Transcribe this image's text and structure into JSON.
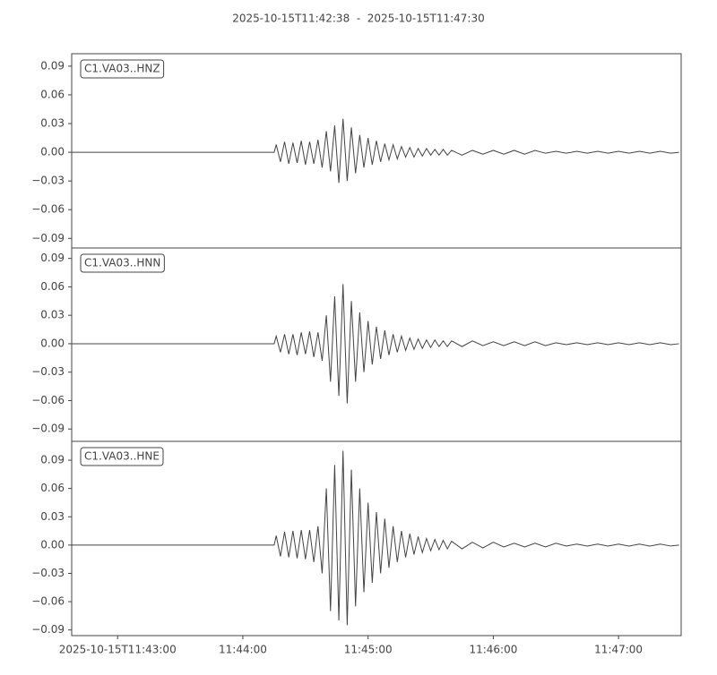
{
  "title": "2025-10-15T11:42:38  -  2025-10-15T11:47:30",
  "chart_data": [
    {
      "type": "line",
      "x": [
        "2025-10-15T11:42:38",
        "2025-10-15T11:44:15",
        "2025-10-15T11:44:16",
        "2025-10-15T11:44:18",
        "2025-10-15T11:44:20",
        "2025-10-15T11:44:22",
        "2025-10-15T11:44:24",
        "2025-10-15T11:44:26",
        "2025-10-15T11:44:28",
        "2025-10-15T11:44:30",
        "2025-10-15T11:44:32",
        "2025-10-15T11:44:34",
        "2025-10-15T11:44:36",
        "2025-10-15T11:44:38",
        "2025-10-15T11:44:40",
        "2025-10-15T11:44:42",
        "2025-10-15T11:44:44",
        "2025-10-15T11:44:46",
        "2025-10-15T11:44:48",
        "2025-10-15T11:44:50",
        "2025-10-15T11:44:52",
        "2025-10-15T11:44:54",
        "2025-10-15T11:44:56",
        "2025-10-15T11:44:58",
        "2025-10-15T11:45:00",
        "2025-10-15T11:45:02",
        "2025-10-15T11:45:04",
        "2025-10-15T11:45:06",
        "2025-10-15T11:45:08",
        "2025-10-15T11:45:10",
        "2025-10-15T11:45:12",
        "2025-10-15T11:45:14",
        "2025-10-15T11:45:16",
        "2025-10-15T11:45:18",
        "2025-10-15T11:45:20",
        "2025-10-15T11:45:22",
        "2025-10-15T11:45:24",
        "2025-10-15T11:45:26",
        "2025-10-15T11:45:28",
        "2025-10-15T11:45:30",
        "2025-10-15T11:45:32",
        "2025-10-15T11:45:34",
        "2025-10-15T11:45:36",
        "2025-10-15T11:45:38",
        "2025-10-15T11:45:40",
        "2025-10-15T11:45:45",
        "2025-10-15T11:45:50",
        "2025-10-15T11:45:55",
        "2025-10-15T11:46:00",
        "2025-10-15T11:46:05",
        "2025-10-15T11:46:10",
        "2025-10-15T11:46:15",
        "2025-10-15T11:46:20",
        "2025-10-15T11:46:25",
        "2025-10-15T11:46:30",
        "2025-10-15T11:46:35",
        "2025-10-15T11:46:40",
        "2025-10-15T11:46:45",
        "2025-10-15T11:46:50",
        "2025-10-15T11:46:55",
        "2025-10-15T11:47:00",
        "2025-10-15T11:47:05",
        "2025-10-15T11:47:10",
        "2025-10-15T11:47:15",
        "2025-10-15T11:47:20",
        "2025-10-15T11:47:25",
        "2025-10-15T11:47:29"
      ],
      "series": [
        {
          "name": "C1.VA03..HNZ",
          "color": "#444444",
          "values": [
            0,
            0,
            0.008,
            -0.01,
            0.011,
            -0.012,
            0.01,
            -0.011,
            0.012,
            -0.013,
            0.011,
            -0.012,
            0.013,
            -0.016,
            0.022,
            -0.02,
            0.028,
            -0.032,
            0.035,
            -0.03,
            0.026,
            -0.022,
            0.018,
            -0.016,
            0.015,
            -0.013,
            0.012,
            -0.01,
            0.009,
            -0.008,
            0.008,
            -0.007,
            0.006,
            -0.005,
            0.005,
            -0.005,
            0.004,
            -0.004,
            0.004,
            -0.003,
            0.003,
            -0.003,
            0.003,
            -0.003,
            0.002,
            -0.003,
            0.002,
            -0.002,
            0.002,
            -0.002,
            0.002,
            -0.002,
            0.002,
            -0.001,
            0.001,
            -0.001,
            0.001,
            -0.001,
            0.001,
            -0.001,
            0.001,
            -0.001,
            0.001,
            -0.001,
            0.001,
            -0.001,
            0
          ]
        }
      ],
      "xlim": [
        "2025-10-15T11:42:38",
        "2025-10-15T11:47:30"
      ],
      "ylim": [
        -0.1,
        0.103
      ],
      "yticks": [
        {
          "value": -0.09,
          "label": "−0.09"
        },
        {
          "value": -0.06,
          "label": "−0.06"
        },
        {
          "value": -0.03,
          "label": "−0.03"
        },
        {
          "value": 0,
          "label": "0.00"
        },
        {
          "value": 0.03,
          "label": "0.03"
        },
        {
          "value": 0.06,
          "label": "0.06"
        },
        {
          "value": 0.09,
          "label": "0.09"
        }
      ]
    },
    {
      "type": "line",
      "x": [
        "2025-10-15T11:42:38",
        "2025-10-15T11:44:15",
        "2025-10-15T11:44:16",
        "2025-10-15T11:44:18",
        "2025-10-15T11:44:20",
        "2025-10-15T11:44:22",
        "2025-10-15T11:44:24",
        "2025-10-15T11:44:26",
        "2025-10-15T11:44:28",
        "2025-10-15T11:44:30",
        "2025-10-15T11:44:32",
        "2025-10-15T11:44:34",
        "2025-10-15T11:44:36",
        "2025-10-15T11:44:38",
        "2025-10-15T11:44:40",
        "2025-10-15T11:44:42",
        "2025-10-15T11:44:44",
        "2025-10-15T11:44:46",
        "2025-10-15T11:44:48",
        "2025-10-15T11:44:50",
        "2025-10-15T11:44:52",
        "2025-10-15T11:44:54",
        "2025-10-15T11:44:56",
        "2025-10-15T11:44:58",
        "2025-10-15T11:45:00",
        "2025-10-15T11:45:02",
        "2025-10-15T11:45:04",
        "2025-10-15T11:45:06",
        "2025-10-15T11:45:08",
        "2025-10-15T11:45:10",
        "2025-10-15T11:45:12",
        "2025-10-15T11:45:14",
        "2025-10-15T11:45:16",
        "2025-10-15T11:45:18",
        "2025-10-15T11:45:20",
        "2025-10-15T11:45:22",
        "2025-10-15T11:45:24",
        "2025-10-15T11:45:26",
        "2025-10-15T11:45:28",
        "2025-10-15T11:45:30",
        "2025-10-15T11:45:32",
        "2025-10-15T11:45:34",
        "2025-10-15T11:45:36",
        "2025-10-15T11:45:38",
        "2025-10-15T11:45:40",
        "2025-10-15T11:45:45",
        "2025-10-15T11:45:50",
        "2025-10-15T11:45:55",
        "2025-10-15T11:46:00",
        "2025-10-15T11:46:05",
        "2025-10-15T11:46:10",
        "2025-10-15T11:46:15",
        "2025-10-15T11:46:20",
        "2025-10-15T11:46:25",
        "2025-10-15T11:46:30",
        "2025-10-15T11:46:35",
        "2025-10-15T11:46:40",
        "2025-10-15T11:46:45",
        "2025-10-15T11:46:50",
        "2025-10-15T11:46:55",
        "2025-10-15T11:47:00",
        "2025-10-15T11:47:05",
        "2025-10-15T11:47:10",
        "2025-10-15T11:47:15",
        "2025-10-15T11:47:20",
        "2025-10-15T11:47:25",
        "2025-10-15T11:47:29"
      ],
      "series": [
        {
          "name": "C1.VA03..HNN",
          "color": "#444444",
          "values": [
            0,
            0,
            0.008,
            -0.009,
            0.01,
            -0.011,
            0.01,
            -0.012,
            0.012,
            -0.011,
            0.013,
            -0.014,
            0.012,
            -0.018,
            0.03,
            -0.04,
            0.05,
            -0.055,
            0.063,
            -0.063,
            0.045,
            -0.04,
            0.033,
            -0.03,
            0.024,
            -0.022,
            0.018,
            -0.016,
            0.014,
            -0.012,
            0.01,
            -0.009,
            0.008,
            -0.007,
            0.006,
            -0.006,
            0.005,
            -0.005,
            0.004,
            -0.004,
            0.004,
            -0.003,
            0.003,
            -0.003,
            0.003,
            -0.003,
            0.003,
            -0.002,
            0.002,
            -0.002,
            0.002,
            -0.002,
            0.002,
            -0.002,
            0.001,
            -0.001,
            0.001,
            -0.001,
            0.001,
            -0.001,
            0.001,
            -0.001,
            0.001,
            -0.001,
            0.001,
            -0.001,
            0
          ]
        }
      ],
      "xlim": [
        "2025-10-15T11:42:38",
        "2025-10-15T11:47:30"
      ],
      "ylim": [
        -0.103,
        0.101
      ],
      "yticks": [
        {
          "value": -0.09,
          "label": "−0.09"
        },
        {
          "value": -0.06,
          "label": "−0.06"
        },
        {
          "value": -0.03,
          "label": "−0.03"
        },
        {
          "value": 0,
          "label": "0.00"
        },
        {
          "value": 0.03,
          "label": "0.03"
        },
        {
          "value": 0.06,
          "label": "0.06"
        },
        {
          "value": 0.09,
          "label": "0.09"
        }
      ]
    },
    {
      "type": "line",
      "x": [
        "2025-10-15T11:42:38",
        "2025-10-15T11:44:15",
        "2025-10-15T11:44:16",
        "2025-10-15T11:44:18",
        "2025-10-15T11:44:20",
        "2025-10-15T11:44:22",
        "2025-10-15T11:44:24",
        "2025-10-15T11:44:26",
        "2025-10-15T11:44:28",
        "2025-10-15T11:44:30",
        "2025-10-15T11:44:32",
        "2025-10-15T11:44:34",
        "2025-10-15T11:44:36",
        "2025-10-15T11:44:38",
        "2025-10-15T11:44:40",
        "2025-10-15T11:44:42",
        "2025-10-15T11:44:44",
        "2025-10-15T11:44:46",
        "2025-10-15T11:44:48",
        "2025-10-15T11:44:50",
        "2025-10-15T11:44:52",
        "2025-10-15T11:44:54",
        "2025-10-15T11:44:56",
        "2025-10-15T11:44:58",
        "2025-10-15T11:45:00",
        "2025-10-15T11:45:02",
        "2025-10-15T11:45:04",
        "2025-10-15T11:45:06",
        "2025-10-15T11:45:08",
        "2025-10-15T11:45:10",
        "2025-10-15T11:45:12",
        "2025-10-15T11:45:14",
        "2025-10-15T11:45:16",
        "2025-10-15T11:45:18",
        "2025-10-15T11:45:20",
        "2025-10-15T11:45:22",
        "2025-10-15T11:45:24",
        "2025-10-15T11:45:26",
        "2025-10-15T11:45:28",
        "2025-10-15T11:45:30",
        "2025-10-15T11:45:32",
        "2025-10-15T11:45:34",
        "2025-10-15T11:45:36",
        "2025-10-15T11:45:38",
        "2025-10-15T11:45:40",
        "2025-10-15T11:45:45",
        "2025-10-15T11:45:50",
        "2025-10-15T11:45:55",
        "2025-10-15T11:46:00",
        "2025-10-15T11:46:05",
        "2025-10-15T11:46:10",
        "2025-10-15T11:46:15",
        "2025-10-15T11:46:20",
        "2025-10-15T11:46:25",
        "2025-10-15T11:46:30",
        "2025-10-15T11:46:35",
        "2025-10-15T11:46:40",
        "2025-10-15T11:46:45",
        "2025-10-15T11:46:50",
        "2025-10-15T11:46:55",
        "2025-10-15T11:47:00",
        "2025-10-15T11:47:05",
        "2025-10-15T11:47:10",
        "2025-10-15T11:47:15",
        "2025-10-15T11:47:20",
        "2025-10-15T11:47:25",
        "2025-10-15T11:47:29"
      ],
      "series": [
        {
          "name": "C1.VA03..HNE",
          "color": "#444444",
          "values": [
            0,
            0,
            0.01,
            -0.012,
            0.014,
            -0.013,
            0.015,
            -0.014,
            0.016,
            -0.015,
            0.016,
            -0.018,
            0.02,
            -0.03,
            0.06,
            -0.07,
            0.085,
            -0.08,
            0.1,
            -0.085,
            0.08,
            -0.065,
            0.06,
            -0.05,
            0.045,
            -0.04,
            0.035,
            -0.03,
            0.028,
            -0.024,
            0.02,
            -0.018,
            0.015,
            -0.013,
            0.012,
            -0.01,
            0.009,
            -0.008,
            0.007,
            -0.006,
            0.006,
            -0.005,
            0.005,
            -0.004,
            0.004,
            -0.004,
            0.003,
            -0.003,
            0.003,
            -0.002,
            0.002,
            -0.002,
            0.002,
            -0.002,
            0.002,
            -0.001,
            0.001,
            -0.001,
            0.001,
            -0.001,
            0.001,
            -0.001,
            0.001,
            -0.001,
            0.001,
            -0.001,
            0
          ]
        }
      ],
      "xlim": [
        "2025-10-15T11:42:38",
        "2025-10-15T11:47:30"
      ],
      "ylim": [
        -0.096,
        0.11
      ],
      "yticks": [
        {
          "value": -0.09,
          "label": "−0.09"
        },
        {
          "value": -0.06,
          "label": "−0.06"
        },
        {
          "value": -0.03,
          "label": "−0.03"
        },
        {
          "value": 0,
          "label": "0.00"
        },
        {
          "value": 0.03,
          "label": "0.03"
        },
        {
          "value": 0.06,
          "label": "0.06"
        },
        {
          "value": 0.09,
          "label": "0.09"
        }
      ],
      "xticks": [
        "2025-10-15T11:43:00",
        {
          "value": "2025-10-15T11:44:00",
          "label": "11:44:00"
        },
        {
          "value": "2025-10-15T11:45:00",
          "label": "11:45:00"
        },
        {
          "value": "2025-10-15T11:46:00",
          "label": "11:46:00"
        },
        {
          "value": "2025-10-15T11:47:00",
          "label": "11:47:00"
        }
      ]
    }
  ]
}
